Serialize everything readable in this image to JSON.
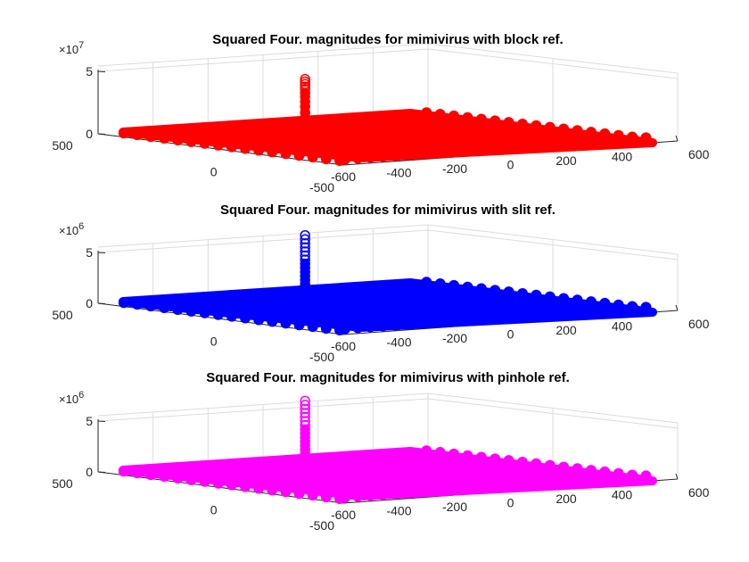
{
  "chart_data": [
    {
      "type": "scatter",
      "title": "Squared Four. magnitudes for mimivirus with block ref.",
      "color": "#ff0000",
      "z_exponent": "7",
      "z_ticks": [
        "0",
        "5"
      ],
      "x_ticks": [
        "-600",
        "-400",
        "-200",
        "0",
        "200",
        "400",
        "600"
      ],
      "y_ticks": [
        "500",
        "0",
        "-500"
      ],
      "xlim": [
        -600,
        600
      ],
      "ylim": [
        -500,
        500
      ],
      "zlim": [
        0,
        50000000
      ],
      "peak": {
        "x": 0,
        "y": 0,
        "z_values": [
          39000000,
          37000000,
          35000000,
          33000000,
          31000000,
          28000000,
          25000000,
          21000000,
          17000000,
          12000000,
          8000000,
          4000000
        ]
      },
      "base_level": 0,
      "grid": true
    },
    {
      "type": "scatter",
      "title": "Squared Four. magnitudes for mimivirus with slit ref.",
      "color": "#0000ff",
      "z_exponent": "6",
      "z_ticks": [
        "0",
        "5"
      ],
      "x_ticks": [
        "-600",
        "-400",
        "-200",
        "0",
        "200",
        "400",
        "600"
      ],
      "y_ticks": [
        "500",
        "0",
        "-500"
      ],
      "xlim": [
        -600,
        600
      ],
      "ylim": [
        -500,
        500
      ],
      "zlim": [
        0,
        5000000
      ],
      "peak": {
        "x": 0,
        "y": 0,
        "z_values": [
          6100000,
          5700000,
          5300000,
          4900000,
          4500000,
          4100000,
          3700000,
          3300000,
          2900000,
          2500000,
          2100000,
          1700000,
          1300000,
          900000,
          500000
        ]
      },
      "base_level": 0,
      "grid": true
    },
    {
      "type": "scatter",
      "title": "Squared Four. magnitudes for mimivirus with pinhole ref.",
      "color": "#ff00ff",
      "z_exponent": "6",
      "z_ticks": [
        "0",
        "5"
      ],
      "x_ticks": [
        "-600",
        "-400",
        "-200",
        "0",
        "200",
        "400",
        "600"
      ],
      "y_ticks": [
        "500",
        "0",
        "-500"
      ],
      "xlim": [
        -600,
        600
      ],
      "ylim": [
        -500,
        500
      ],
      "zlim": [
        0,
        5000000
      ],
      "peak": {
        "x": 0,
        "y": 0,
        "z_values": [
          6400000,
          6000000,
          5600000,
          5200000,
          4800000,
          4400000,
          4000000,
          3600000,
          3200000,
          2800000,
          2400000,
          2000000,
          1600000,
          1200000,
          800000,
          400000
        ]
      },
      "base_level": 0,
      "grid": true
    }
  ]
}
